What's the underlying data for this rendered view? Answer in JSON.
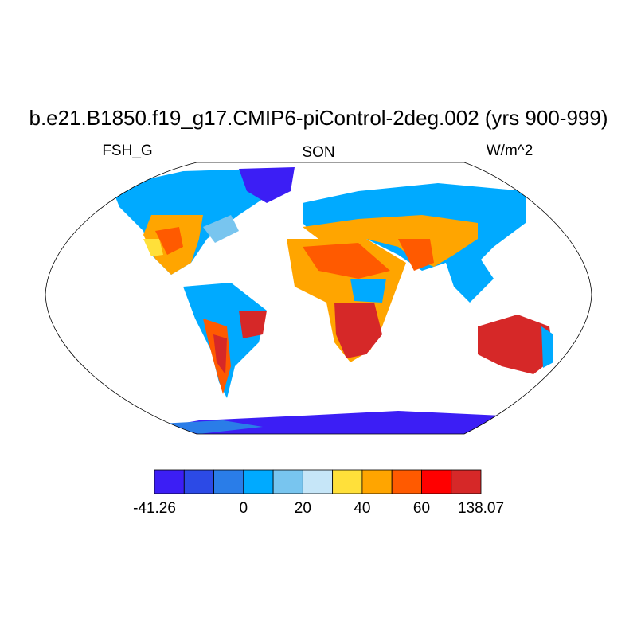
{
  "header": {
    "title": "b.e21.B1850.f19_g17.CMIP6-piControl-2deg.002 (yrs 900-999)",
    "left_label": "FSH_G",
    "center_label": "SON",
    "right_label": "W/m^2"
  },
  "colorbar": {
    "colors": [
      "#3c1ef5",
      "#2c4ae6",
      "#2a7de8",
      "#00aaff",
      "#78c5ef",
      "#c6e6f8",
      "#ffe03a",
      "#ffa500",
      "#ff5a00",
      "#ff0000",
      "#d62828"
    ],
    "labels": [
      "-41.26",
      null,
      null,
      "0",
      null,
      "20",
      null,
      "40",
      null,
      "60",
      null,
      "138.07"
    ]
  }
}
